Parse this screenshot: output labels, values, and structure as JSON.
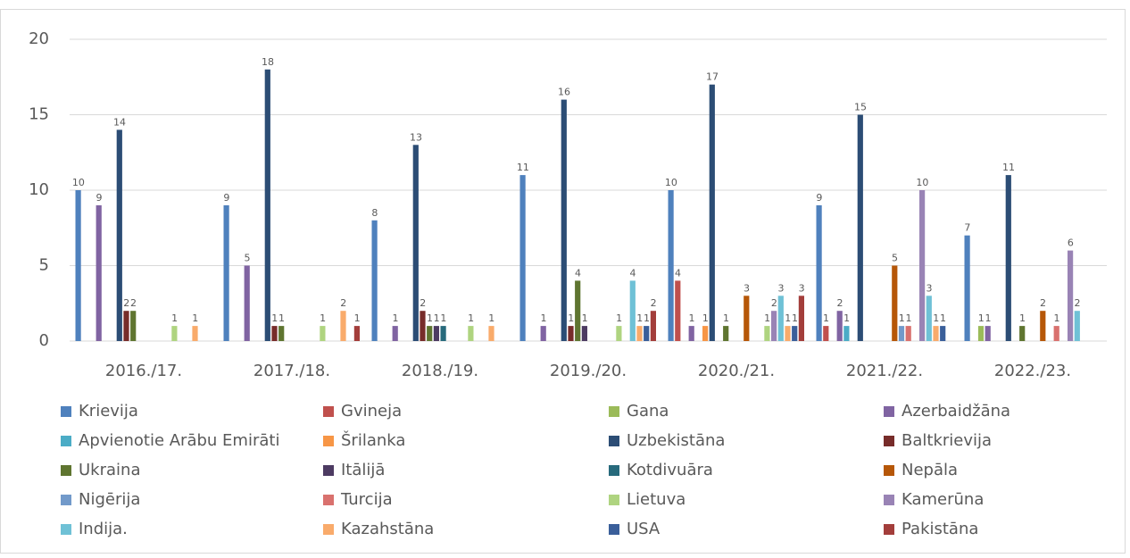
{
  "chart_data": {
    "type": "bar",
    "categories": [
      "2016./17.",
      "2017./18.",
      "2018./19.",
      "2019./20.",
      "2020./21.",
      "2021./22.",
      "2022./23."
    ],
    "series": [
      {
        "name": "Krievija",
        "color": "#4f81bd",
        "values": [
          10,
          9,
          8,
          11,
          10,
          9,
          7
        ]
      },
      {
        "name": "Gvineja",
        "color": "#c0504d",
        "values": [
          null,
          null,
          null,
          null,
          4,
          1,
          null
        ]
      },
      {
        "name": "Gana",
        "color": "#9bbb59",
        "values": [
          null,
          null,
          null,
          null,
          null,
          null,
          1
        ]
      },
      {
        "name": "Azerbaidžāna",
        "color": "#8064a2",
        "values": [
          9,
          5,
          1,
          1,
          1,
          2,
          1
        ]
      },
      {
        "name": "Apvienotie Arābu Emirāti",
        "color": "#4bacc6",
        "values": [
          null,
          null,
          null,
          null,
          null,
          1,
          null
        ]
      },
      {
        "name": "Šrilanka",
        "color": "#f79646",
        "values": [
          null,
          null,
          null,
          null,
          1,
          null,
          null
        ]
      },
      {
        "name": "Uzbekistāna",
        "color": "#2c4d75",
        "values": [
          14,
          18,
          13,
          16,
          17,
          15,
          11
        ]
      },
      {
        "name": "Baltkrievija",
        "color": "#772c2a",
        "values": [
          2,
          1,
          2,
          1,
          null,
          null,
          null
        ]
      },
      {
        "name": "Ukraina",
        "color": "#5f7530",
        "values": [
          2,
          1,
          1,
          4,
          1,
          null,
          1
        ]
      },
      {
        "name": "Itālijā",
        "color": "#4d3b62",
        "values": [
          null,
          null,
          1,
          1,
          null,
          null,
          null
        ]
      },
      {
        "name": "Kotdivuāra",
        "color": "#276a7c",
        "values": [
          null,
          null,
          1,
          null,
          null,
          null,
          null
        ]
      },
      {
        "name": "Nepāla",
        "color": "#b65708",
        "values": [
          null,
          null,
          null,
          null,
          3,
          5,
          2
        ]
      },
      {
        "name": "Nigērija",
        "color": "#729aca",
        "values": [
          null,
          null,
          null,
          null,
          null,
          1,
          null
        ]
      },
      {
        "name": "Turcija",
        "color": "#d9716e",
        "values": [
          null,
          null,
          null,
          null,
          null,
          1,
          1
        ]
      },
      {
        "name": "Lietuva",
        "color": "#afd480",
        "values": [
          1,
          1,
          1,
          1,
          1,
          null,
          null
        ]
      },
      {
        "name": "Kamerūna",
        "color": "#9983b5",
        "values": [
          null,
          null,
          null,
          null,
          2,
          10,
          6
        ]
      },
      {
        "name": "Indija.",
        "color": "#6fc1d6",
        "values": [
          null,
          null,
          null,
          4,
          3,
          3,
          2
        ]
      },
      {
        "name": "Kazahstāna",
        "color": "#f9ab6b",
        "values": [
          1,
          2,
          1,
          1,
          1,
          1,
          null
        ]
      },
      {
        "name": "USA",
        "color": "#3a5f9a",
        "values": [
          null,
          null,
          null,
          1,
          1,
          1,
          null
        ]
      },
      {
        "name": "Pakistāna",
        "color": "#a33e3b",
        "values": [
          null,
          1,
          null,
          2,
          3,
          null,
          null
        ]
      }
    ],
    "ylim": [
      0,
      20
    ],
    "yticks": [
      0,
      5,
      10,
      15,
      20
    ],
    "grid": true,
    "legend": "bottom"
  }
}
